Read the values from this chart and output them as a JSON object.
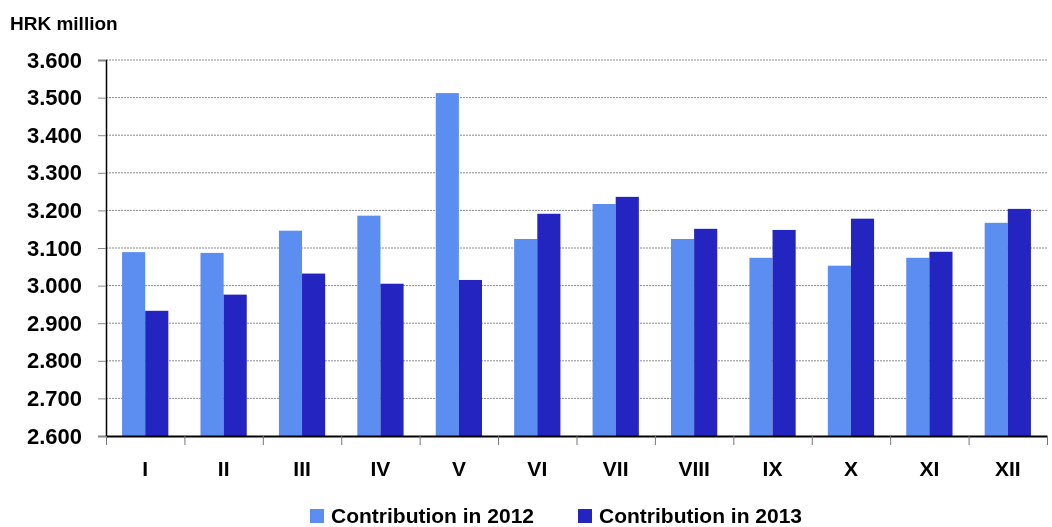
{
  "chart_data": {
    "type": "bar",
    "ylabel": "HRK million",
    "categories": [
      "I",
      "II",
      "III",
      "IV",
      "V",
      "VI",
      "VII",
      "VIII",
      "IX",
      "X",
      "XI",
      "XII"
    ],
    "series": [
      {
        "name": "Contribution in 2012",
        "color": "#5b8ef0",
        "values": [
          3089,
          3087,
          3146,
          3186,
          3512,
          3124,
          3217,
          3124,
          3074,
          3053,
          3074,
          3167
        ]
      },
      {
        "name": "Contribution in 2013",
        "color": "#2424c0",
        "values": [
          2933,
          2976,
          3032,
          3005,
          3015,
          3191,
          3236,
          3151,
          3148,
          3178,
          3090,
          3204
        ]
      }
    ],
    "ylim": [
      2600,
      3600
    ],
    "yticks": [
      {
        "value": 2600,
        "label": "2.600"
      },
      {
        "value": 2700,
        "label": "2.700"
      },
      {
        "value": 2800,
        "label": "2.800"
      },
      {
        "value": 2900,
        "label": "2.900"
      },
      {
        "value": 3000,
        "label": "3.000"
      },
      {
        "value": 3100,
        "label": "3.100"
      },
      {
        "value": 3200,
        "label": "3.200"
      },
      {
        "value": 3300,
        "label": "3.300"
      },
      {
        "value": 3400,
        "label": "3.400"
      },
      {
        "value": 3500,
        "label": "3.500"
      },
      {
        "value": 3600,
        "label": "3.600"
      }
    ],
    "grid": "y",
    "legend": "bottom"
  }
}
